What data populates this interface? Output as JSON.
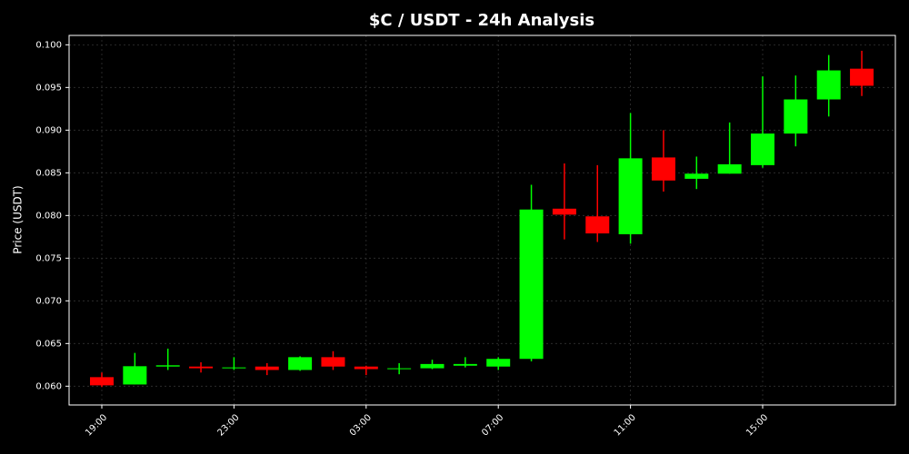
{
  "chart_data": {
    "type": "candlestick",
    "title": "$C / USDT - 24h Analysis",
    "y_label": "Price (USDT)",
    "categories": [
      "19:00",
      null,
      null,
      null,
      "23:00",
      null,
      null,
      null,
      "03:00",
      null,
      null,
      null,
      "07:00",
      null,
      null,
      null,
      "11:00",
      null,
      null,
      null,
      "15:00",
      null,
      null,
      null
    ],
    "open": [
      0.06106,
      0.0602,
      0.0623,
      0.0623,
      0.0621,
      0.0623,
      0.0619,
      0.0634,
      0.0623,
      0.062,
      0.0621,
      0.0624,
      0.0623,
      0.0632,
      0.0808,
      0.0799,
      0.0778,
      0.0868,
      0.0843,
      0.0849,
      0.0859,
      0.0896,
      0.0936,
      0.0972
    ],
    "high": [
      0.0616,
      0.0639,
      0.0644,
      0.0628,
      0.0634,
      0.0627,
      0.0635,
      0.0641,
      0.0624,
      0.0627,
      0.0631,
      0.0634,
      0.0634,
      0.0836,
      0.0861,
      0.0859,
      0.092,
      0.09,
      0.0869,
      0.0909,
      0.0963,
      0.0964,
      0.0988,
      0.0993
    ],
    "low": [
      0.0599,
      0.0602,
      0.0619,
      0.0616,
      0.0619,
      0.0613,
      0.0618,
      0.0619,
      0.0613,
      0.0614,
      0.062,
      0.0622,
      0.0619,
      0.0629,
      0.0772,
      0.0769,
      0.0767,
      0.0828,
      0.0831,
      0.0849,
      0.0856,
      0.0881,
      0.0916,
      0.094
    ],
    "close": [
      0.0601,
      0.06234,
      0.06245,
      0.0621,
      0.0622,
      0.0619,
      0.0634,
      0.0623,
      0.062,
      0.0621,
      0.0626,
      0.0626,
      0.0632,
      0.0807,
      0.0801,
      0.0779,
      0.0867,
      0.0841,
      0.0849,
      0.086,
      0.0896,
      0.0936,
      0.097,
      0.0952
    ],
    "up_color": "#00ff00",
    "down_color": "#ff0000",
    "ylim": [
      0.0578,
      0.1011
    ],
    "yticks": [
      {
        "value": 0.06,
        "label": "0.060"
      },
      {
        "value": 0.065,
        "label": "0.065"
      },
      {
        "value": 0.07,
        "label": "0.070"
      },
      {
        "value": 0.075,
        "label": "0.075"
      },
      {
        "value": 0.08,
        "label": "0.080"
      },
      {
        "value": 0.085,
        "label": "0.085"
      },
      {
        "value": 0.09,
        "label": "0.090"
      },
      {
        "value": 0.095,
        "label": "0.095"
      },
      {
        "value": 0.1,
        "label": "0.100"
      }
    ],
    "grid": true
  }
}
